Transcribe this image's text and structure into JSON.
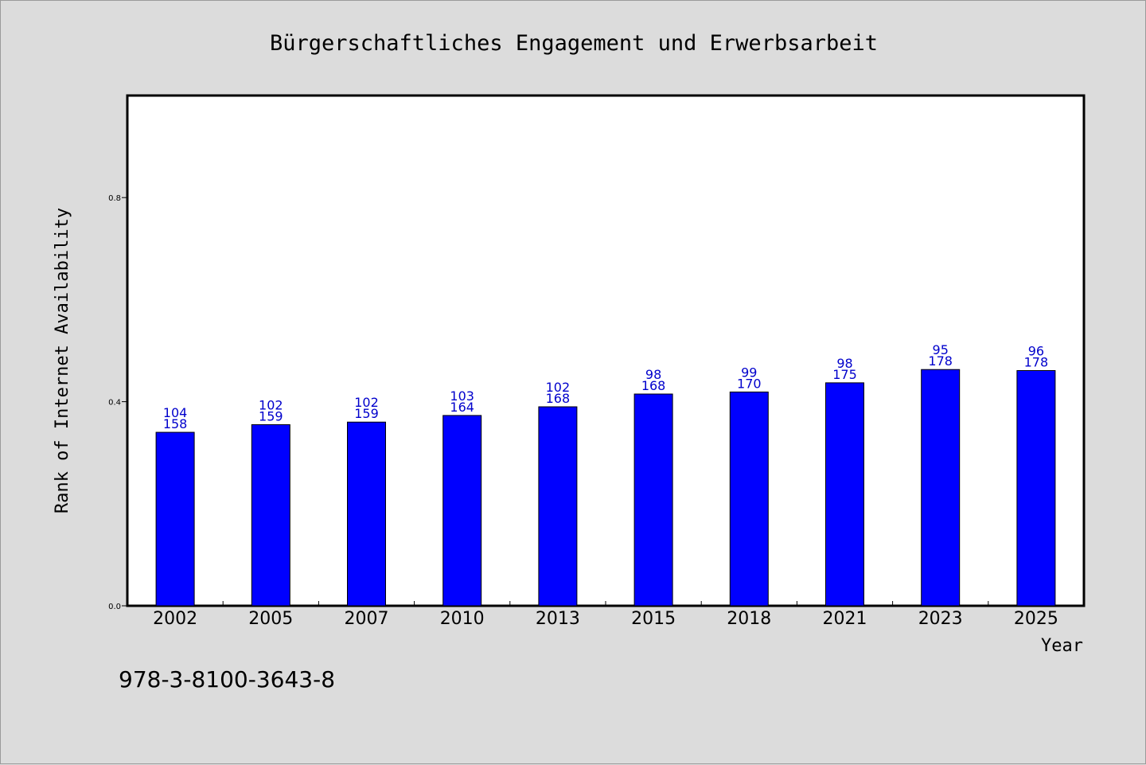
{
  "chart_data": {
    "type": "bar",
    "title": "Bürgerschaftliches Engagement und Erwerbsarbeit",
    "xlabel": "Year",
    "ylabel": "Rank of Internet Availability",
    "ylim": [
      0,
      1.0
    ],
    "yticks": [
      "0.0",
      "0.4",
      "0.8"
    ],
    "ytick_values": [
      0.0,
      0.4,
      0.8
    ],
    "categories": [
      "2002",
      "2005",
      "2007",
      "2010",
      "2013",
      "2015",
      "2018",
      "2021",
      "2023",
      "2025"
    ],
    "values": [
      0.34,
      0.355,
      0.36,
      0.373,
      0.39,
      0.415,
      0.419,
      0.437,
      0.463,
      0.461
    ],
    "labels_top": [
      "104",
      "102",
      "102",
      "103",
      "102",
      "98",
      "99",
      "98",
      "95",
      "96"
    ],
    "labels_bottom": [
      "158",
      "159",
      "159",
      "164",
      "168",
      "168",
      "170",
      "175",
      "178",
      "178"
    ],
    "bar_color": "#0000ff",
    "label_color": "#0000cc",
    "grid": false,
    "legend": "none"
  },
  "footer": {
    "isbn": "978-3-8100-3643-8"
  }
}
